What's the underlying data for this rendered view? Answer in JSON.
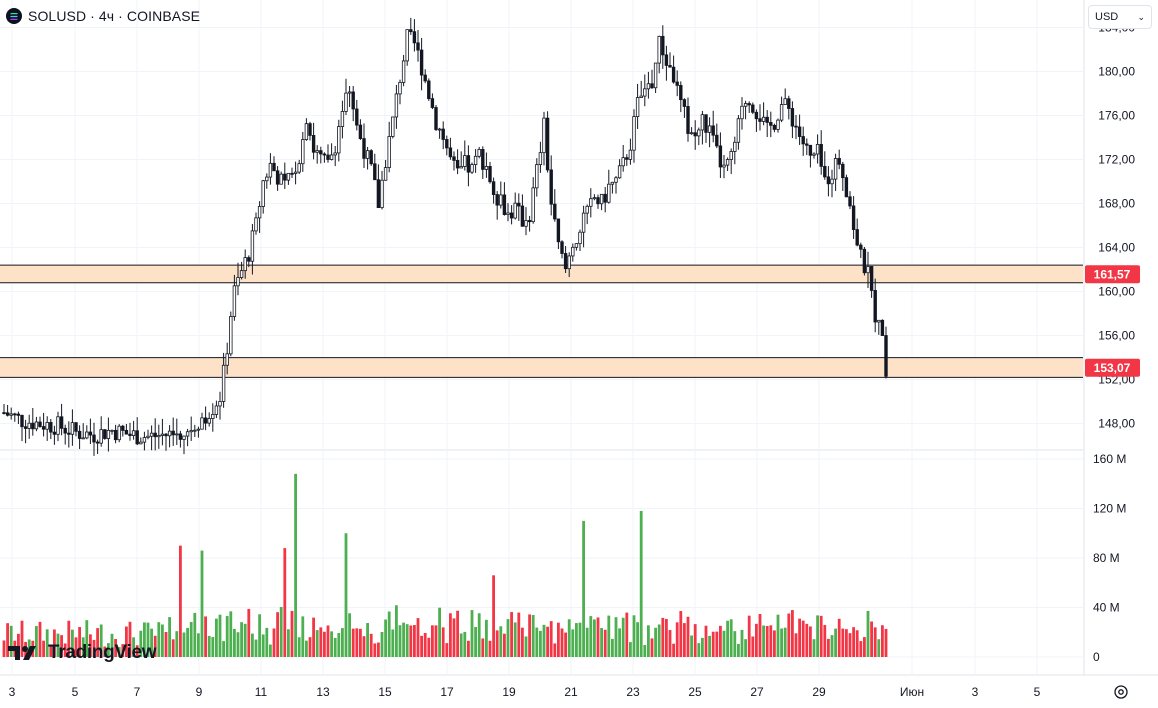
{
  "header": {
    "title": "SOLUSD · 4ч · COINBASE",
    "currency": "USD"
  },
  "watermark": "TradingView",
  "colors": {
    "up": "#4caf50",
    "down": "#f23645",
    "candle": "#131722",
    "zone_fill": "#fde2c8",
    "zone_line": "#131722",
    "label_bg": "#f23645"
  },
  "chart_data": {
    "type": "candlestick",
    "price_axis": {
      "ticks": [
        "184,00",
        "180,00",
        "176,00",
        "172,00",
        "168,00",
        "164,00",
        "160,00",
        "156,00",
        "152,00",
        "148,00"
      ],
      "range": [
        145.6,
        186.5
      ]
    },
    "volume_axis": {
      "ticks": [
        "160 M",
        "120 M",
        "80 M",
        "40 M",
        "0"
      ],
      "range": [
        0,
        160
      ]
    },
    "x_labels": [
      "3",
      "5",
      "7",
      "9",
      "11",
      "13",
      "15",
      "17",
      "19",
      "21",
      "23",
      "25",
      "27",
      "29",
      "Июн",
      "3",
      "5"
    ],
    "levels": [
      {
        "price": 161.57,
        "label": "161,57",
        "band": [
          160.8,
          162.4
        ]
      },
      {
        "price": 153.07,
        "label": "153,07",
        "band": [
          152.2,
          154.0
        ]
      }
    ],
    "close_path": [
      [
        0,
        149.0
      ],
      [
        5,
        148.3
      ],
      [
        10,
        148.0
      ],
      [
        15,
        147.8
      ],
      [
        20,
        147.2
      ],
      [
        25,
        147.0
      ],
      [
        30,
        147.4
      ],
      [
        35,
        147.0
      ],
      [
        40,
        146.8
      ],
      [
        45,
        147.0
      ],
      [
        50,
        147.2
      ],
      [
        55,
        148.5
      ],
      [
        58,
        149.5
      ],
      [
        60,
        150.5
      ],
      [
        61,
        152.5
      ],
      [
        62,
        155.0
      ],
      [
        63,
        158.0
      ],
      [
        64,
        160.0
      ],
      [
        66,
        161.8
      ],
      [
        68,
        163.5
      ],
      [
        70,
        166.0
      ],
      [
        72,
        170.0
      ],
      [
        74,
        171.5
      ],
      [
        76,
        170.5
      ],
      [
        78,
        169.5
      ],
      [
        80,
        170.5
      ],
      [
        82,
        172.5
      ],
      [
        84,
        176.0
      ],
      [
        86,
        173.0
      ],
      [
        88,
        172.0
      ],
      [
        90,
        171.5
      ],
      [
        92,
        173.5
      ],
      [
        94,
        176.5
      ],
      [
        96,
        178.5
      ],
      [
        98,
        175.0
      ],
      [
        100,
        173.0
      ],
      [
        102,
        171.0
      ],
      [
        104,
        168.0
      ],
      [
        106,
        172.0
      ],
      [
        108,
        175.5
      ],
      [
        110,
        179.5
      ],
      [
        112,
        183.0
      ],
      [
        114,
        182.5
      ],
      [
        116,
        180.5
      ],
      [
        118,
        178.0
      ],
      [
        120,
        175.5
      ],
      [
        122,
        174.0
      ],
      [
        124,
        172.0
      ],
      [
        126,
        170.5
      ],
      [
        128,
        171.5
      ],
      [
        130,
        171.0
      ],
      [
        132,
        172.5
      ],
      [
        134,
        171.5
      ],
      [
        136,
        169.0
      ],
      [
        138,
        168.5
      ],
      [
        140,
        167.0
      ],
      [
        142,
        167.5
      ],
      [
        144,
        166.5
      ],
      [
        146,
        167.0
      ],
      [
        148,
        171.0
      ],
      [
        150,
        175.0
      ],
      [
        152,
        168.0
      ],
      [
        154,
        164.0
      ],
      [
        156,
        162.0
      ],
      [
        158,
        164.5
      ],
      [
        160,
        165.5
      ],
      [
        162,
        167.0
      ],
      [
        164,
        168.5
      ],
      [
        166,
        168.0
      ],
      [
        168,
        169.5
      ],
      [
        170,
        170.0
      ],
      [
        172,
        171.5
      ],
      [
        174,
        173.5
      ],
      [
        176,
        177.0
      ],
      [
        178,
        178.5
      ],
      [
        180,
        179.0
      ],
      [
        182,
        182.5
      ],
      [
        184,
        181.0
      ],
      [
        186,
        179.5
      ],
      [
        188,
        177.0
      ],
      [
        190,
        175.0
      ],
      [
        192,
        174.0
      ],
      [
        194,
        175.5
      ],
      [
        196,
        174.5
      ],
      [
        198,
        172.5
      ],
      [
        200,
        171.0
      ],
      [
        202,
        172.0
      ],
      [
        204,
        175.0
      ],
      [
        206,
        177.5
      ],
      [
        208,
        177.0
      ],
      [
        210,
        176.0
      ],
      [
        212,
        174.5
      ],
      [
        214,
        175.5
      ],
      [
        216,
        177.0
      ],
      [
        218,
        176.5
      ],
      [
        220,
        175.0
      ],
      [
        222,
        173.5
      ],
      [
        224,
        172.0
      ],
      [
        226,
        172.5
      ],
      [
        228,
        170.0
      ],
      [
        230,
        171.0
      ],
      [
        232,
        172.0
      ],
      [
        234,
        169.5
      ],
      [
        236,
        166.0
      ],
      [
        238,
        163.0
      ],
      [
        240,
        161.5
      ],
      [
        242,
        158.0
      ],
      [
        244,
        155.5
      ],
      [
        245,
        153.2
      ]
    ],
    "volume_spikes": [
      [
        49,
        90
      ],
      [
        55,
        86
      ],
      [
        78,
        88
      ],
      [
        81,
        148
      ],
      [
        95,
        100
      ],
      [
        136,
        66
      ],
      [
        161,
        110
      ],
      [
        177,
        118
      ]
    ]
  }
}
